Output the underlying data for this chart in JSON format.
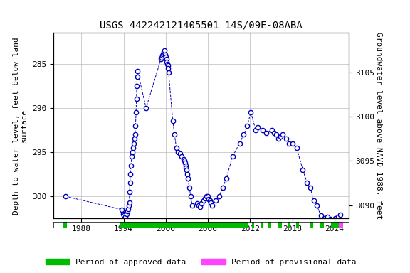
{
  "title": "USGS 442242121405501 14S/09E-08ABA",
  "ylabel_left": "Depth to water level, feet below land\nsurface",
  "ylabel_right": "Groundwater level above NAVD 1988, feet",
  "xlim": [
    1984,
    2026
  ],
  "ylim_left": [
    302.5,
    281.5
  ],
  "ylim_right": [
    3088.5,
    3109.5
  ],
  "yticks_left": [
    300,
    295,
    290,
    285
  ],
  "yticks_right": [
    3090,
    3095,
    3100,
    3105
  ],
  "xticks": [
    1988,
    1994,
    2000,
    2006,
    2012,
    2018,
    2024
  ],
  "data_x": [
    1985.7,
    1993.75,
    1993.9,
    1994.0,
    1994.1,
    1994.25,
    1994.4,
    1994.5,
    1994.6,
    1994.7,
    1994.8,
    1994.85,
    1994.9,
    1994.95,
    1995.05,
    1995.15,
    1995.25,
    1995.35,
    1995.45,
    1995.55,
    1995.62,
    1995.7,
    1995.77,
    1995.83,
    1995.88,
    1995.93,
    1995.97,
    1997.2,
    1999.3,
    1999.45,
    1999.55,
    1999.65,
    1999.75,
    1999.85,
    1999.93,
    2000.0,
    2000.07,
    2000.13,
    2000.2,
    2000.27,
    2000.33,
    2000.4,
    2001.0,
    2001.25,
    2001.5,
    2001.75,
    2002.0,
    2002.25,
    2002.5,
    2002.6,
    2002.7,
    2002.8,
    2002.88,
    2002.95,
    2003.05,
    2003.15,
    2003.35,
    2003.55,
    2003.75,
    2004.5,
    2004.7,
    2004.85,
    2005.1,
    2005.35,
    2005.6,
    2005.8,
    2005.95,
    2006.1,
    2006.25,
    2006.4,
    2006.55,
    2007.1,
    2007.6,
    2008.1,
    2008.6,
    2009.5,
    2010.5,
    2011.1,
    2011.6,
    2012.1,
    2012.8,
    2013.1,
    2013.8,
    2014.3,
    2015.1,
    2015.4,
    2015.75,
    2016.0,
    2016.35,
    2016.65,
    2017.1,
    2017.55,
    2018.0,
    2018.6,
    2019.5,
    2020.1,
    2020.55,
    2021.05,
    2021.5,
    2022.05,
    2022.55,
    2023.05,
    2023.4,
    2023.75,
    2024.1,
    2024.5,
    2024.85
  ],
  "data_y": [
    300.0,
    301.5,
    302.0,
    302.2,
    302.5,
    302.3,
    302.0,
    301.7,
    301.4,
    301.0,
    300.7,
    299.5,
    298.5,
    297.5,
    296.5,
    295.5,
    295.0,
    294.5,
    294.0,
    293.5,
    293.0,
    292.0,
    290.5,
    289.0,
    287.5,
    286.5,
    285.8,
    290.0,
    284.5,
    284.3,
    284.1,
    283.9,
    283.7,
    283.5,
    284.0,
    284.2,
    284.5,
    284.8,
    285.0,
    285.2,
    285.5,
    286.0,
    291.5,
    293.0,
    294.5,
    295.0,
    295.2,
    295.5,
    295.8,
    296.0,
    296.2,
    296.5,
    296.8,
    297.0,
    297.5,
    298.0,
    299.0,
    300.0,
    301.0,
    300.8,
    301.0,
    301.2,
    300.8,
    300.5,
    300.2,
    300.0,
    300.0,
    300.3,
    300.5,
    300.7,
    301.0,
    300.5,
    300.0,
    299.0,
    298.0,
    295.5,
    294.0,
    293.0,
    292.0,
    290.5,
    292.5,
    292.2,
    292.5,
    292.8,
    292.5,
    292.8,
    293.0,
    293.5,
    293.2,
    293.0,
    293.5,
    294.0,
    294.0,
    294.5,
    297.0,
    298.5,
    299.0,
    300.5,
    301.0,
    302.2,
    302.5,
    302.3,
    302.6,
    302.8,
    302.5,
    302.3,
    302.1
  ],
  "approved_periods_x": [
    [
      1985.4,
      1985.9
    ],
    [
      1993.4,
      2011.7
    ],
    [
      2012.3,
      2012.6
    ],
    [
      2013.5,
      2013.9
    ],
    [
      2014.5,
      2015.0
    ],
    [
      2016.0,
      2016.5
    ],
    [
      2017.3,
      2017.7
    ],
    [
      2018.5,
      2019.0
    ],
    [
      2020.5,
      2021.0
    ],
    [
      2022.0,
      2022.5
    ],
    [
      2023.5,
      2024.6
    ]
  ],
  "provisional_periods_x": [
    [
      2024.6,
      2025.2
    ]
  ],
  "line_color": "#0000bb",
  "marker_facecolor": "#ffffff",
  "marker_edgecolor": "#0000bb",
  "grid_color": "#bbbbbb",
  "approved_color": "#00bb00",
  "provisional_color": "#ff44ff",
  "title_fontsize": 10,
  "label_fontsize": 8,
  "tick_fontsize": 8
}
